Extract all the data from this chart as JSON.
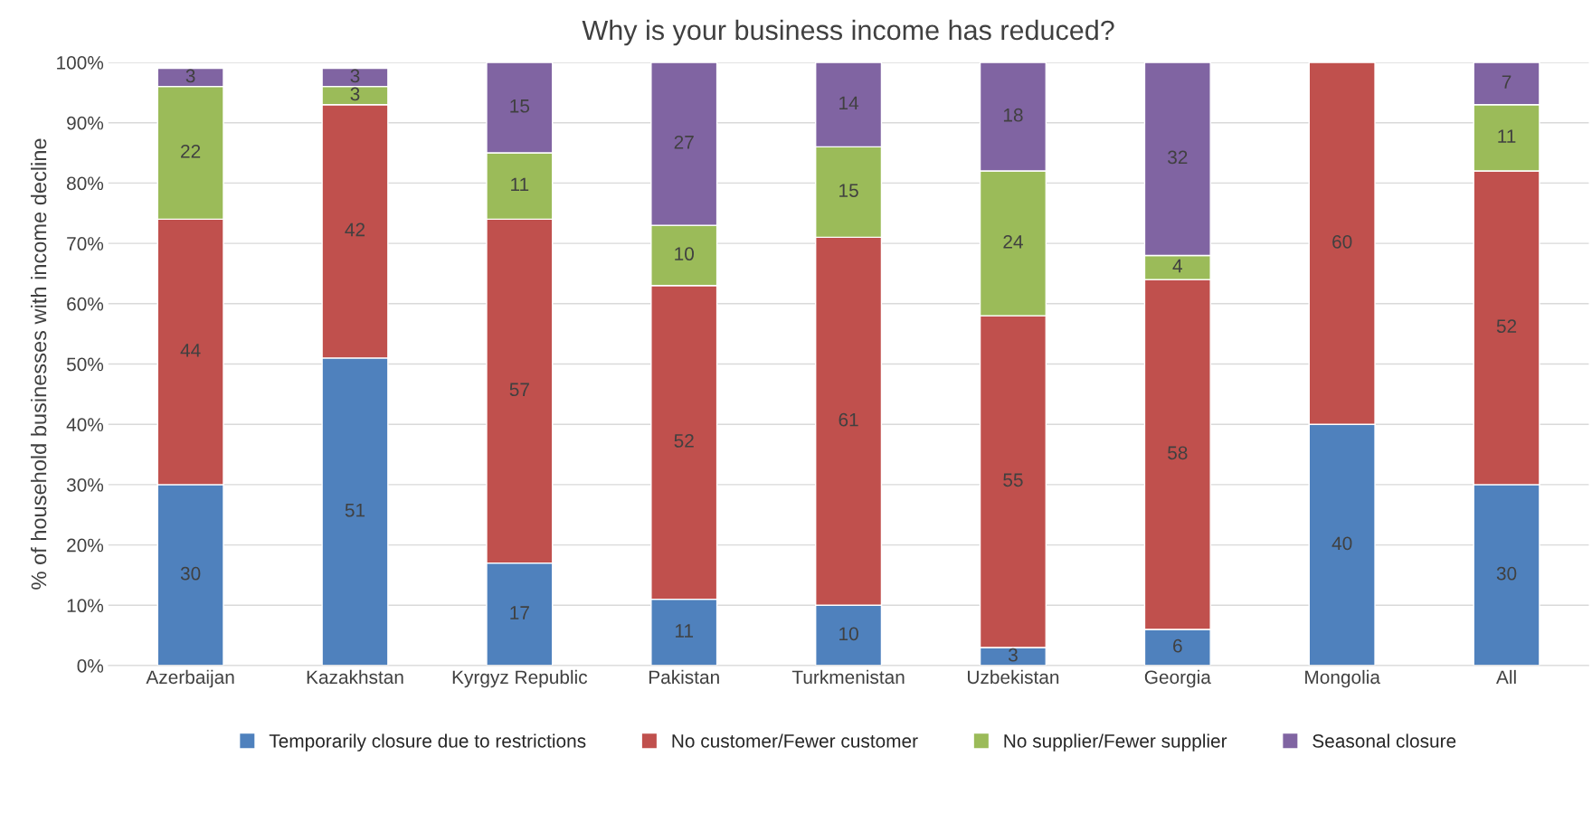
{
  "chart_data": {
    "type": "bar",
    "title": "Why is your business income has reduced?",
    "ylabel": "% of household businesses with income decline",
    "categories": [
      "Azerbaijan",
      "Kazakhstan",
      "Kyrgyz Republic",
      "Pakistan",
      "Turkmenistan",
      "Uzbekistan",
      "Georgia",
      "Mongolia",
      "All"
    ],
    "series": [
      {
        "name": "Temporarily closure due to restrictions",
        "color": "#4f81bd",
        "values": [
          30,
          51,
          17,
          11,
          10,
          3,
          6,
          40,
          30
        ]
      },
      {
        "name": "No customer/Fewer customer",
        "color": "#c0504d",
        "values": [
          44,
          42,
          57,
          52,
          61,
          55,
          58,
          60,
          52
        ]
      },
      {
        "name": "No supplier/Fewer supplier",
        "color": "#9bbb59",
        "values": [
          22,
          3,
          11,
          10,
          15,
          24,
          4,
          null,
          11
        ]
      },
      {
        "name": "Seasonal closure",
        "color": "#8064a2",
        "values": [
          3,
          3,
          15,
          27,
          14,
          18,
          32,
          null,
          7
        ]
      }
    ],
    "stacked": true,
    "data_labels": true,
    "ylim": [
      0,
      100
    ],
    "yticks": [
      {
        "value": 0,
        "label": "0%"
      },
      {
        "value": 10,
        "label": "10%"
      },
      {
        "value": 20,
        "label": "20%"
      },
      {
        "value": 30,
        "label": "30%"
      },
      {
        "value": 40,
        "label": "40%"
      },
      {
        "value": 50,
        "label": "50%"
      },
      {
        "value": 60,
        "label": "60%"
      },
      {
        "value": 70,
        "label": "70%"
      },
      {
        "value": 80,
        "label": "80%"
      },
      {
        "value": 90,
        "label": "90%"
      },
      {
        "value": 100,
        "label": "100%"
      }
    ],
    "grid": "y",
    "legend": "bottom"
  }
}
